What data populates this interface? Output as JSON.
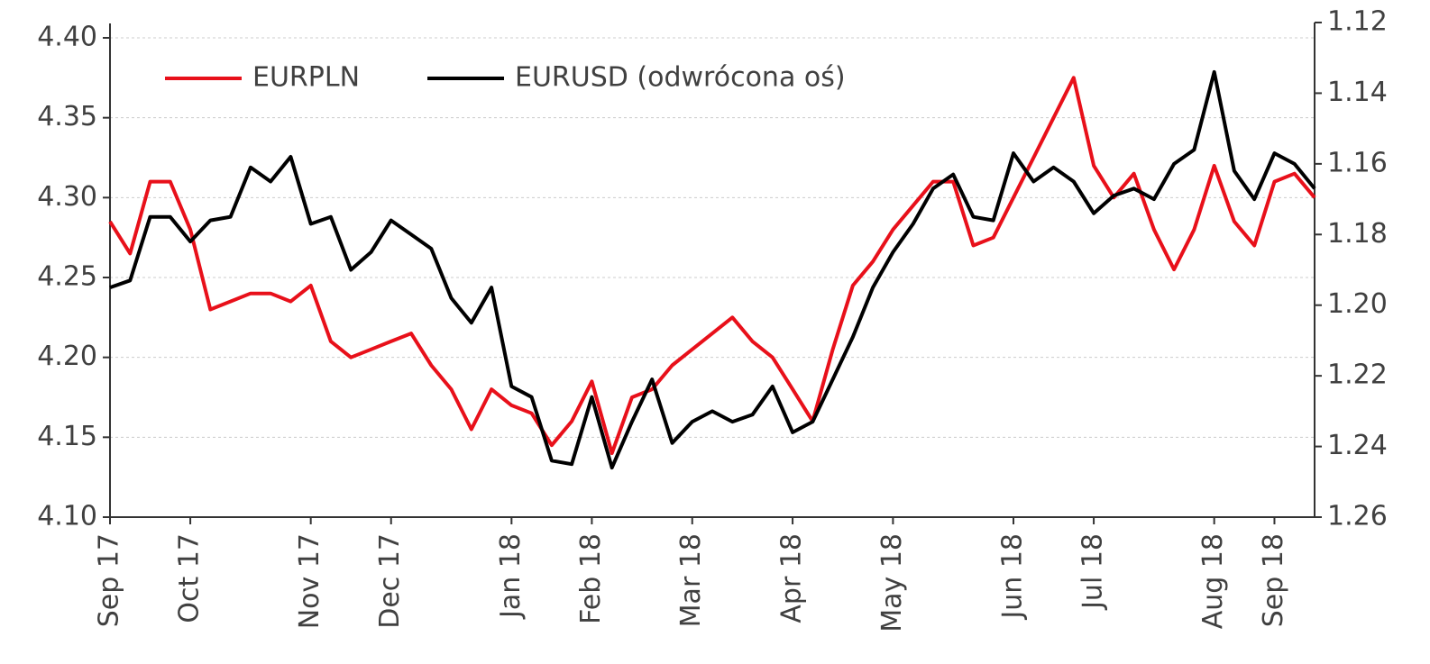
{
  "chart_data": {
    "type": "line",
    "categories": [
      "Sep 17",
      null,
      null,
      null,
      "Oct 17",
      null,
      null,
      null,
      null,
      null,
      "Nov 17",
      null,
      null,
      null,
      "Dec 17",
      null,
      null,
      null,
      null,
      null,
      "Jan 18",
      null,
      null,
      null,
      "Feb 18",
      null,
      null,
      null,
      null,
      "Mar 18",
      null,
      null,
      null,
      null,
      "Apr 18",
      null,
      null,
      null,
      null,
      "May 18",
      null,
      null,
      null,
      null,
      null,
      "Jun 18",
      null,
      null,
      null,
      "Jul 18",
      null,
      null,
      null,
      null,
      null,
      "Aug 18",
      null,
      null,
      "Sep 18",
      null,
      null
    ],
    "series": [
      {
        "name": "EURPLN",
        "color": "#e8101a",
        "values": [
          4.285,
          4.265,
          4.31,
          4.31,
          4.28,
          4.23,
          4.235,
          4.24,
          4.24,
          4.235,
          4.245,
          4.21,
          4.2,
          4.205,
          4.21,
          4.215,
          4.195,
          4.18,
          4.155,
          4.18,
          4.17,
          4.165,
          4.145,
          4.16,
          4.185,
          4.14,
          4.175,
          4.18,
          4.195,
          4.205,
          4.215,
          4.225,
          4.21,
          4.2,
          4.18,
          4.16,
          4.205,
          4.245,
          4.26,
          4.28,
          4.295,
          4.31,
          4.31,
          4.27,
          4.275,
          4.3,
          4.325,
          4.35,
          4.375,
          4.32,
          4.3,
          4.315,
          4.28,
          4.255,
          4.28,
          4.32,
          4.285,
          4.27,
          4.31,
          4.315,
          4.3
        ]
      },
      {
        "name": "EURUSD (odwrócona oś)",
        "color": "#000000",
        "axis": "y2",
        "values": [
          1.195,
          1.193,
          1.175,
          1.175,
          1.182,
          1.176,
          1.175,
          1.161,
          1.165,
          1.158,
          1.177,
          1.175,
          1.19,
          1.185,
          1.176,
          1.18,
          1.184,
          1.198,
          1.205,
          1.195,
          1.223,
          1.226,
          1.244,
          1.245,
          1.226,
          1.246,
          1.233,
          1.221,
          1.239,
          1.233,
          1.23,
          1.233,
          1.231,
          1.223,
          1.236,
          1.233,
          1.221,
          1.209,
          1.195,
          1.185,
          1.177,
          1.167,
          1.163,
          1.175,
          1.176,
          1.157,
          1.165,
          1.161,
          1.165,
          1.174,
          1.169,
          1.167,
          1.17,
          1.16,
          1.156,
          1.134,
          1.162,
          1.17,
          1.157,
          1.16,
          1.167
        ]
      }
    ],
    "ylim": [
      4.1,
      4.4
    ],
    "yticks": [
      {
        "value": 4.1,
        "label": "4.10"
      },
      4.15,
      {
        "value": 4.2,
        "label": "4.20"
      },
      4.25,
      {
        "value": 4.3,
        "label": "4.30"
      },
      4.35,
      {
        "value": 4.4,
        "label": "4.40"
      }
    ],
    "y2lim": [
      1.26,
      1.12
    ],
    "y2ticks": [
      1.26,
      1.24,
      1.22,
      {
        "value": 1.2,
        "label": "1.20"
      },
      1.18,
      1.16,
      1.14,
      1.12
    ],
    "grid": true,
    "legend": "top-left"
  }
}
